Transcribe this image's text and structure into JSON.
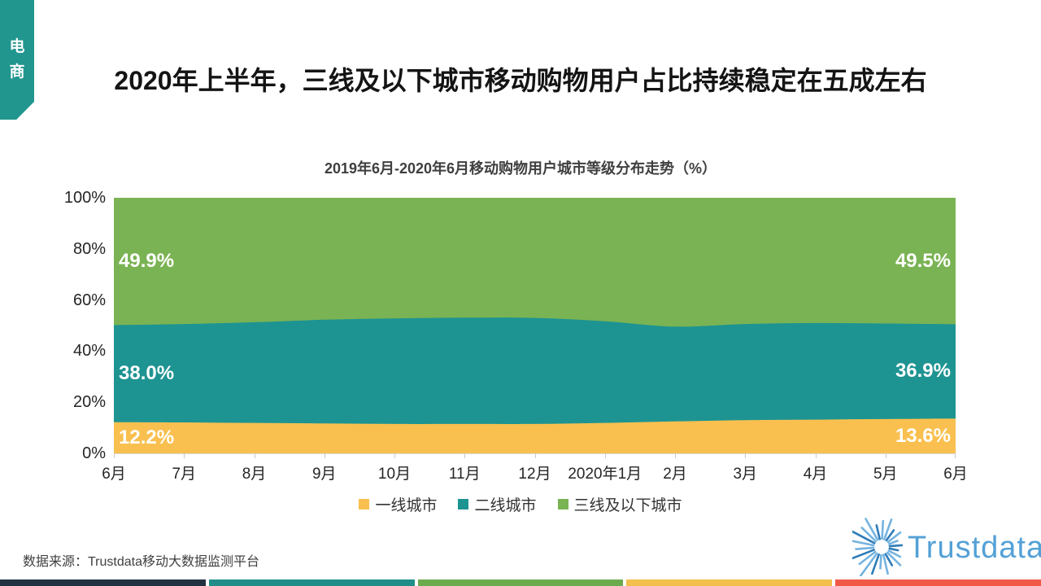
{
  "page": {
    "tab_label": "电商",
    "main_title": "2020年上半年，三线及以下城市移动购物用户占比持续稳定在五成左右",
    "source": "数据来源：Trustdata移动大数据监测平台",
    "logo_text": "Trustdata"
  },
  "colors": {
    "tab": "#21968f",
    "tier1_yellow": "#f9c04f",
    "tier2_teal": "#1e9492",
    "tier3_green": "#7ab353",
    "logo_blue": "#54a1d6",
    "ray_dark": "#2e7cb8",
    "ray_light": "#74b3e0",
    "footer": [
      "#22303f",
      "#1f8e89",
      "#6caa4e",
      "#f2bf4c",
      "#f15947"
    ]
  },
  "chart_data": {
    "type": "area",
    "stacked": true,
    "title": "2019年6月-2020年6月移动购物用户城市等级分布走势（%）",
    "categories": [
      "6月",
      "7月",
      "8月",
      "9月",
      "10月",
      "11月",
      "12月",
      "2020年1月",
      "2月",
      "3月",
      "4月",
      "5月",
      "6月"
    ],
    "series": [
      {
        "name": "一线城市",
        "color": "#f9c04f",
        "values": [
          12.2,
          12.1,
          11.9,
          11.7,
          11.5,
          11.5,
          11.5,
          11.9,
          12.5,
          13.0,
          13.2,
          13.4,
          13.6
        ]
      },
      {
        "name": "二线城市",
        "color": "#1e9492",
        "values": [
          38.0,
          38.5,
          39.4,
          40.6,
          41.3,
          41.6,
          41.5,
          39.8,
          37.1,
          37.6,
          37.8,
          37.4,
          36.9
        ]
      },
      {
        "name": "三线及以下城市",
        "color": "#7ab353",
        "values": [
          49.9,
          49.4,
          48.7,
          47.7,
          47.2,
          46.9,
          47.0,
          48.3,
          50.4,
          49.4,
          49.0,
          49.2,
          49.5
        ]
      }
    ],
    "edge_labels": {
      "start": [
        "12.2%",
        "38.0%",
        "49.9%"
      ],
      "end": [
        "13.6%",
        "36.9%",
        "49.5%"
      ]
    },
    "ylim": [
      0,
      100
    ],
    "yticks": [
      "0%",
      "20%",
      "40%",
      "60%",
      "80%",
      "100%"
    ],
    "grid": false,
    "legend_position": "bottom"
  }
}
